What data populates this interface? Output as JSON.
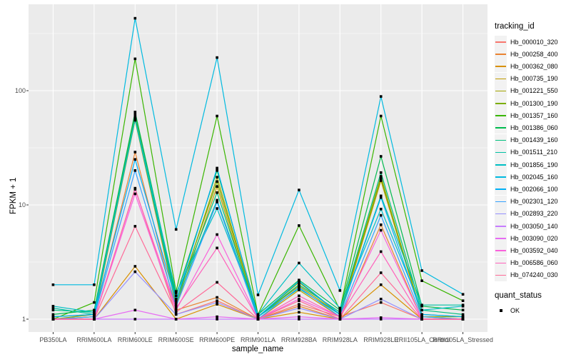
{
  "chart_data": {
    "type": "line",
    "xlabel": "sample_name",
    "ylabel": "FPKM + 1",
    "y_scale": "log10",
    "y_ticks": [
      1,
      10,
      100
    ],
    "ylim_log": [
      0.95,
      570
    ],
    "grid": "on",
    "panel_bg": "#ebebeb",
    "grid_color": "#ffffff",
    "tick_text_color": "#4d4d4d",
    "point_marker": {
      "shape": "square",
      "color": "#000000",
      "size": 3.6
    },
    "legend_position": "right",
    "color_legend_title": "tracking_id",
    "shape_legend_title": "quant_status",
    "shape_legend_items": [
      {
        "label": "OK",
        "marker": "black-square"
      }
    ],
    "categories": [
      "PB350LA",
      "RRIM600LA",
      "RRIM600LE",
      "RRIM600SE",
      "RRIM600PE",
      "RRIM901LA",
      "RRIM928BA",
      "RRIM928LA",
      "RRIM928LE",
      "RRII105LA_Control",
      "RRII105LA_Stressed"
    ],
    "series": [
      {
        "name": "Hb_000010_320",
        "color": "#F8766D",
        "values": [
          1.0,
          1.0,
          14.0,
          1.1,
          1.45,
          1.0,
          1.35,
          1.05,
          1.4,
          1.0,
          1.0
        ]
      },
      {
        "name": "Hb_000258_400",
        "color": "#EA8331",
        "values": [
          1.0,
          1.05,
          29.0,
          1.2,
          1.55,
          1.0,
          1.3,
          1.0,
          6.7,
          1.0,
          1.0
        ]
      },
      {
        "name": "Hb_000362_080",
        "color": "#D89000",
        "values": [
          1.0,
          1.0,
          2.9,
          1.0,
          1.35,
          1.0,
          1.15,
          1.0,
          2.0,
          1.0,
          1.0
        ]
      },
      {
        "name": "Hb_000735_190",
        "color": "#C09B00",
        "values": [
          1.0,
          1.05,
          55.0,
          1.3,
          14.5,
          1.0,
          1.8,
          1.05,
          16.3,
          1.05,
          1.0
        ]
      },
      {
        "name": "Hb_001221_550",
        "color": "#A3A500",
        "values": [
          1.0,
          1.1,
          60.0,
          1.35,
          17.5,
          1.05,
          1.95,
          1.1,
          17.8,
          1.05,
          1.05
        ]
      },
      {
        "name": "Hb_001300_190",
        "color": "#7CAE00",
        "values": [
          1.05,
          1.1,
          62.0,
          1.45,
          16.0,
          1.05,
          2.1,
          1.1,
          17.0,
          1.1,
          1.05
        ]
      },
      {
        "name": "Hb_001357_160",
        "color": "#39B600",
        "values": [
          1.0,
          1.4,
          190.0,
          1.75,
          60.0,
          1.1,
          6.6,
          1.2,
          60.0,
          2.17,
          1.45
        ]
      },
      {
        "name": "Hb_001386_060",
        "color": "#00BB4E",
        "values": [
          1.1,
          1.2,
          65.0,
          1.6,
          20.0,
          1.1,
          2.2,
          1.2,
          26.6,
          1.3,
          1.2
        ]
      },
      {
        "name": "Hb_001439_160",
        "color": "#00BF7D",
        "values": [
          1.2,
          1.15,
          58.0,
          1.5,
          12.8,
          1.05,
          2.0,
          1.15,
          19.2,
          1.2,
          1.1
        ]
      },
      {
        "name": "Hb_001511_210",
        "color": "#00C1A3",
        "values": [
          1.25,
          1.1,
          56.0,
          1.4,
          11.0,
          1.05,
          1.85,
          1.1,
          12.0,
          1.33,
          1.33
        ]
      },
      {
        "name": "Hb_001856_190",
        "color": "#00BFC4",
        "values": [
          1.3,
          1.15,
          57.0,
          1.7,
          9.3,
          1.1,
          3.1,
          1.25,
          9.2,
          1.2,
          1.3
        ]
      },
      {
        "name": "Hb_002045_160",
        "color": "#00BAE0",
        "values": [
          2.0,
          2.0,
          430.0,
          6.1,
          195.0,
          1.63,
          13.5,
          1.78,
          89.0,
          2.66,
          1.65
        ]
      },
      {
        "name": "Hb_002066_100",
        "color": "#00B0F6",
        "values": [
          1.05,
          1.1,
          25.0,
          1.45,
          21.0,
          1.05,
          2.15,
          1.1,
          11.6,
          1.1,
          1.05
        ]
      },
      {
        "name": "Hb_002301_120",
        "color": "#35A2FF",
        "values": [
          1.0,
          1.05,
          20.0,
          1.3,
          10.6,
          1.0,
          1.9,
          1.05,
          8.1,
          1.05,
          1.0
        ]
      },
      {
        "name": "Hb_002893_220",
        "color": "#9590FF",
        "values": [
          1.0,
          1.0,
          2.6,
          1.1,
          1.4,
          1.0,
          1.25,
          1.0,
          1.5,
          1.0,
          1.0
        ]
      },
      {
        "name": "Hb_003050_140",
        "color": "#C77CFF",
        "values": [
          1.0,
          1.0,
          1.0,
          1.0,
          1.0,
          1.0,
          1.0,
          1.0,
          1.0,
          1.0,
          1.0
        ]
      },
      {
        "name": "Hb_003090_020",
        "color": "#E76BF3",
        "values": [
          1.0,
          1.0,
          1.2,
          1.0,
          1.05,
          1.0,
          1.05,
          1.0,
          1.03,
          1.0,
          1.0
        ]
      },
      {
        "name": "Hb_003592_040",
        "color": "#FA62DB",
        "values": [
          1.0,
          1.0,
          12.5,
          1.2,
          5.5,
          1.0,
          1.5,
          1.05,
          6.0,
          1.0,
          1.0
        ]
      },
      {
        "name": "Hb_006586_060",
        "color": "#FF62BC",
        "values": [
          1.0,
          1.0,
          13.7,
          1.25,
          4.2,
          1.0,
          1.6,
          1.05,
          3.9,
          1.0,
          1.0
        ]
      },
      {
        "name": "Hb_074240_030",
        "color": "#FF6A98",
        "values": [
          1.0,
          1.0,
          6.5,
          1.15,
          2.1,
          1.0,
          1.45,
          1.0,
          2.55,
          1.0,
          1.0
        ]
      }
    ]
  }
}
